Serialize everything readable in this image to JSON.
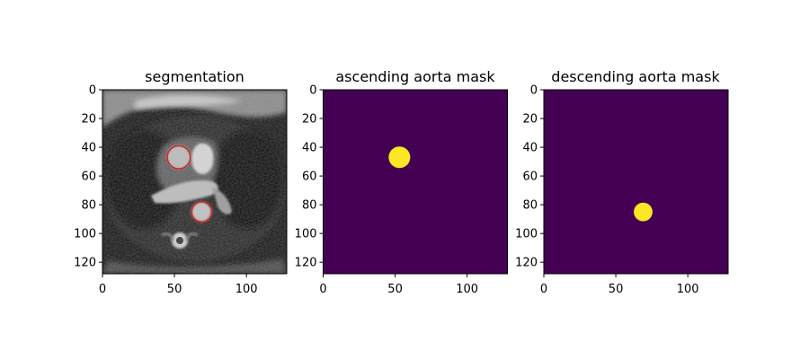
{
  "chart_data": [
    {
      "type": "image",
      "title": "segmentation",
      "content": "grayscale cardiac MRI slice with red contour overlays",
      "xlim": [
        0,
        128
      ],
      "ylim": [
        128,
        0
      ],
      "xticks": [
        0,
        50,
        100
      ],
      "yticks": [
        0,
        20,
        40,
        60,
        80,
        100,
        120
      ],
      "contour_color": "#d62728",
      "contours": [
        {
          "label": "ascending aorta",
          "cx": 53,
          "cy": 47,
          "r": 8
        },
        {
          "label": "descending aorta",
          "cx": 69,
          "cy": 85,
          "r": 7
        }
      ]
    },
    {
      "type": "image",
      "title": "ascending aorta mask",
      "xlim": [
        0,
        128
      ],
      "ylim": [
        128,
        0
      ],
      "xticks": [
        0,
        50,
        100
      ],
      "yticks": [
        0,
        20,
        40,
        60,
        80,
        100,
        120
      ],
      "background_color": "#440154",
      "mask_color": "#fde725",
      "mask": {
        "cx": 53,
        "cy": 47,
        "r": 7.5
      }
    },
    {
      "type": "image",
      "title": "descending aorta mask",
      "xlim": [
        0,
        128
      ],
      "ylim": [
        128,
        0
      ],
      "xticks": [
        0,
        50,
        100
      ],
      "yticks": [
        0,
        20,
        40,
        60,
        80,
        100,
        120
      ],
      "background_color": "#440154",
      "mask_color": "#fde725",
      "mask": {
        "cx": 69,
        "cy": 85,
        "r": 6.5
      }
    }
  ]
}
